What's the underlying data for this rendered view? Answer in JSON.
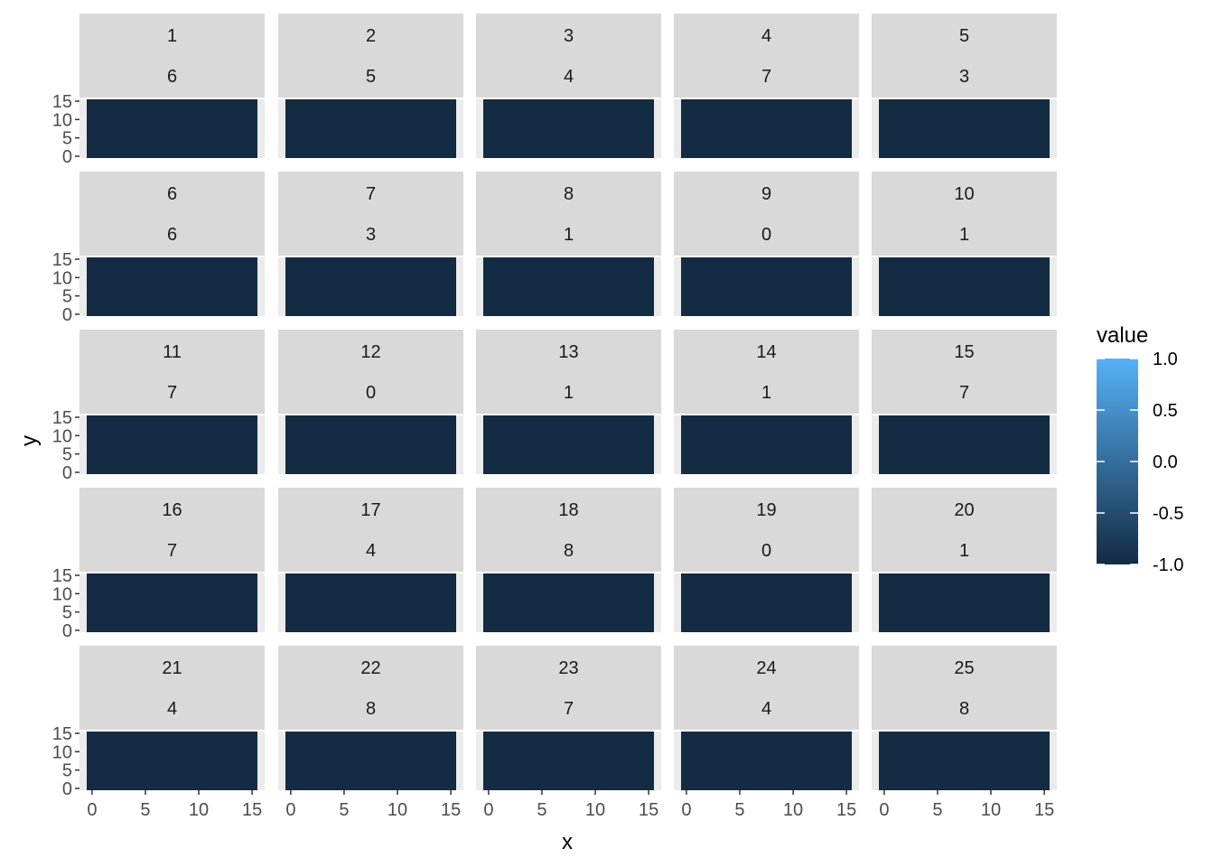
{
  "chart_data": {
    "type": "heatmap",
    "title": "",
    "xlabel": "x",
    "ylabel": "y",
    "x_ticks": [
      0,
      5,
      10,
      15
    ],
    "y_ticks": [
      0,
      5,
      10,
      15
    ],
    "xlim": [
      -0.5,
      15.5
    ],
    "ylim": [
      -0.5,
      15.5
    ],
    "legend": {
      "title": "value",
      "position": "right",
      "min": -1.0,
      "max": 1.0,
      "breaks": [
        1.0,
        0.5,
        0.0,
        -0.5,
        -1.0
      ],
      "break_labels": [
        "1.0",
        "0.5",
        "0.0",
        "-0.5",
        "-1.0"
      ],
      "low_color": "#132B43",
      "high_color": "#56B1F7"
    },
    "panels": [
      {
        "index": "1",
        "label": "6"
      },
      {
        "index": "2",
        "label": "5"
      },
      {
        "index": "3",
        "label": "4"
      },
      {
        "index": "4",
        "label": "7"
      },
      {
        "index": "5",
        "label": "3"
      },
      {
        "index": "6",
        "label": "6"
      },
      {
        "index": "7",
        "label": "3"
      },
      {
        "index": "8",
        "label": "1"
      },
      {
        "index": "9",
        "label": "0"
      },
      {
        "index": "10",
        "label": "1"
      },
      {
        "index": "11",
        "label": "7"
      },
      {
        "index": "12",
        "label": "0"
      },
      {
        "index": "13",
        "label": "1"
      },
      {
        "index": "14",
        "label": "1"
      },
      {
        "index": "15",
        "label": "7"
      },
      {
        "index": "16",
        "label": "7"
      },
      {
        "index": "17",
        "label": "4"
      },
      {
        "index": "18",
        "label": "8"
      },
      {
        "index": "19",
        "label": "0"
      },
      {
        "index": "20",
        "label": "1"
      },
      {
        "index": "21",
        "label": "4"
      },
      {
        "index": "22",
        "label": "8"
      },
      {
        "index": "23",
        "label": "7"
      },
      {
        "index": "24",
        "label": "4"
      },
      {
        "index": "25",
        "label": "8"
      }
    ]
  }
}
